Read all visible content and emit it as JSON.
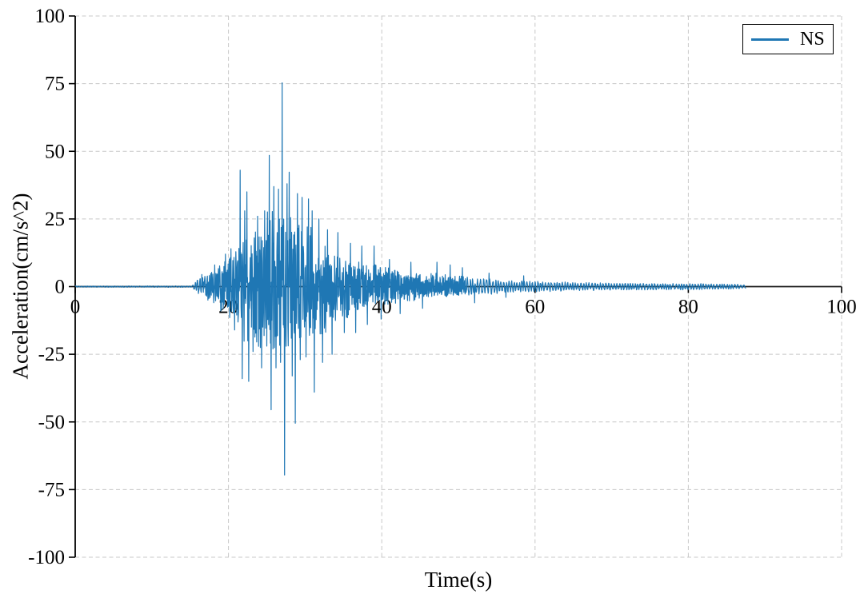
{
  "figure": {
    "xlabel": "Time(s)",
    "ylabel": "Acceleration(cm/s^2)",
    "legend": {
      "label": "NS",
      "position": "upper right"
    }
  },
  "chart_data": {
    "type": "line",
    "title": "",
    "xlabel": "Time(s)",
    "ylabel": "Acceleration(cm/s^2)",
    "series": [
      {
        "name": "NS",
        "color": "#1f77b4"
      }
    ],
    "xlim": [
      0,
      100
    ],
    "ylim": [
      -100,
      100
    ],
    "x_ticks": [
      0,
      20,
      40,
      60,
      80,
      100
    ],
    "y_ticks": [
      -100,
      -75,
      -50,
      -25,
      0,
      25,
      50,
      75,
      100
    ],
    "grid": "dashed",
    "legend_position": "upper right",
    "colors": {
      "line": "#1f77b4",
      "grid": "#c8c8c8",
      "axis": "#000000",
      "zero_axis": "#1a1a1a"
    },
    "peak_acceleration": 75.3,
    "min_acceleration": -69.6,
    "signal": {
      "description": "NS-component earthquake accelerogram: flat near 0 until ~15.5 s, strong shaking 16-40 s (peak +75.3 at 27.0 s, trough -69.6 at 27.3 s), coda decaying to ~±1 until trace ends at 87.5 s",
      "t_start": 0,
      "t_end": 87.5,
      "dt": 0.04,
      "seed": 7,
      "envelope": [
        [
          0,
          0.25,
          0.25
        ],
        [
          15.2,
          0.3,
          0.3
        ],
        [
          15.6,
          1.5,
          1.5
        ],
        [
          16,
          3,
          3
        ],
        [
          17,
          4.5,
          4.5
        ],
        [
          18,
          6.5,
          7
        ],
        [
          19,
          8,
          8.5
        ],
        [
          20,
          11,
          12
        ],
        [
          21,
          15,
          15
        ],
        [
          22,
          21,
          22
        ],
        [
          23,
          19,
          23
        ],
        [
          24,
          23,
          25
        ],
        [
          25,
          28,
          27
        ],
        [
          26,
          32,
          29
        ],
        [
          27,
          35,
          31
        ],
        [
          28,
          32,
          28
        ],
        [
          29,
          28,
          26
        ],
        [
          30,
          27,
          22
        ],
        [
          31,
          22,
          20
        ],
        [
          32,
          18,
          21
        ],
        [
          33,
          16,
          16
        ],
        [
          34,
          14,
          13
        ],
        [
          35,
          12,
          12
        ],
        [
          36,
          12,
          13
        ],
        [
          37,
          10,
          10
        ],
        [
          38,
          9,
          9
        ],
        [
          39,
          10,
          8
        ],
        [
          40,
          8,
          8
        ],
        [
          41,
          7,
          7.5
        ],
        [
          42,
          7,
          7
        ],
        [
          43,
          6,
          6
        ],
        [
          44,
          6,
          5.5
        ],
        [
          45,
          5,
          5
        ],
        [
          46,
          5,
          4.5
        ],
        [
          47,
          5.5,
          4
        ],
        [
          48,
          5,
          4
        ],
        [
          49,
          4.5,
          4
        ],
        [
          50,
          4,
          4
        ],
        [
          51,
          4,
          3.5
        ],
        [
          52,
          3.5,
          3
        ],
        [
          54,
          3,
          3
        ],
        [
          56,
          2.5,
          2.5
        ],
        [
          58,
          2.2,
          2.2
        ],
        [
          60,
          2,
          2
        ],
        [
          63,
          1.8,
          1.8
        ],
        [
          66,
          1.5,
          1.5
        ],
        [
          70,
          1.4,
          1.4
        ],
        [
          75,
          1.3,
          1.3
        ],
        [
          80,
          1.2,
          1.2
        ],
        [
          85,
          1,
          1
        ],
        [
          87.5,
          0.8,
          0.8
        ]
      ],
      "peaks": [
        [
          16.5,
          4.5
        ],
        [
          17.3,
          -5
        ],
        [
          18.2,
          8
        ],
        [
          19.0,
          -9
        ],
        [
          19.6,
          12
        ],
        [
          20.3,
          14
        ],
        [
          20.8,
          -16
        ],
        [
          21.5,
          43
        ],
        [
          21.8,
          -34
        ],
        [
          22.1,
          28
        ],
        [
          22.4,
          35
        ],
        [
          22.65,
          -35
        ],
        [
          23.2,
          -24
        ],
        [
          23.8,
          26
        ],
        [
          24.3,
          -30
        ],
        [
          24.7,
          28
        ],
        [
          25.3,
          48.5
        ],
        [
          25.55,
          -45.5
        ],
        [
          25.9,
          37
        ],
        [
          26.2,
          -30
        ],
        [
          26.5,
          36
        ],
        [
          26.8,
          -28
        ],
        [
          27.0,
          75.3
        ],
        [
          27.3,
          -69.6
        ],
        [
          27.65,
          38
        ],
        [
          27.9,
          42.3
        ],
        [
          28.3,
          -33
        ],
        [
          28.7,
          -50.5
        ],
        [
          29.0,
          34.4
        ],
        [
          29.35,
          -27
        ],
        [
          29.6,
          33
        ],
        [
          30.1,
          -26
        ],
        [
          30.45,
          32.4
        ],
        [
          30.9,
          28
        ],
        [
          31.2,
          -39
        ],
        [
          31.8,
          25
        ],
        [
          32.3,
          -28
        ],
        [
          32.9,
          21
        ],
        [
          33.5,
          -25
        ],
        [
          34.3,
          20
        ],
        [
          35.1,
          -17
        ],
        [
          35.9,
          16
        ],
        [
          36.6,
          -17
        ],
        [
          37.4,
          15
        ],
        [
          38.1,
          -14
        ],
        [
          39.0,
          15
        ],
        [
          39.9,
          -12
        ],
        [
          41.0,
          10
        ],
        [
          42.4,
          -10
        ],
        [
          43.8,
          9
        ],
        [
          45.3,
          -8
        ],
        [
          47.2,
          9
        ],
        [
          48.9,
          8
        ],
        [
          50.5,
          7
        ],
        [
          52.1,
          -6
        ],
        [
          54.0,
          5
        ],
        [
          56.2,
          -4
        ],
        [
          58.5,
          4
        ]
      ]
    }
  }
}
